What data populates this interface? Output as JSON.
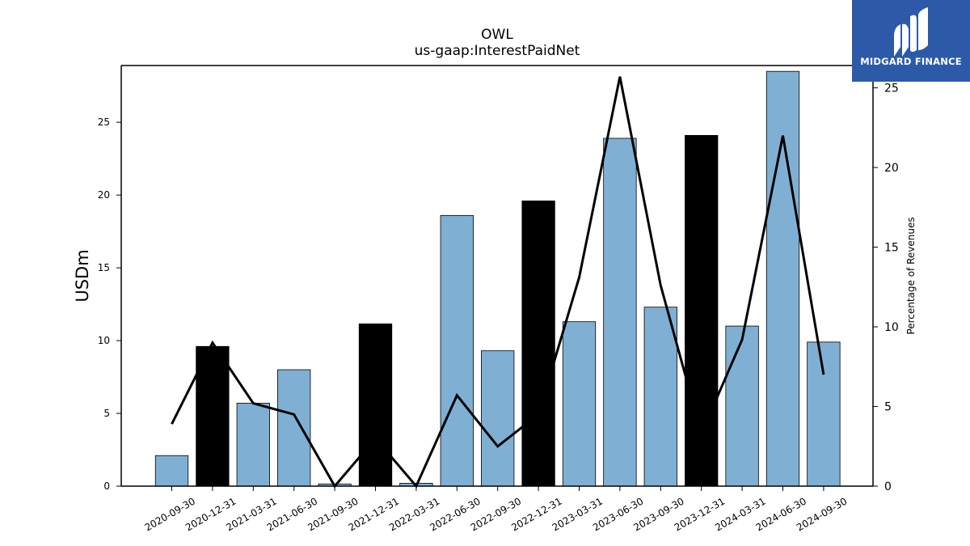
{
  "chart_data": {
    "type": "bar",
    "title": "OWL",
    "subtitle": "us-gaap:InterestPaidNet",
    "ylabel": "USDm",
    "y2label": "Percentage of Revenues",
    "categories": [
      "2020-09-30",
      "2020-12-31",
      "2021-03-31",
      "2021-06-30",
      "2021-09-30",
      "2021-12-31",
      "2022-03-31",
      "2022-06-30",
      "2022-09-30",
      "2022-12-31",
      "2023-03-31",
      "2023-06-30",
      "2023-09-30",
      "2023-12-31",
      "2024-03-31",
      "2024-06-30",
      "2024-09-30"
    ],
    "series": [
      {
        "values": [
          2.1,
          9.6,
          5.7,
          8.0,
          0.15,
          11.15,
          0.2,
          18.6,
          9.3,
          19.6,
          11.3,
          23.9,
          12.3,
          24.1,
          11.0,
          28.5,
          9.9
        ],
        "bar_colors": [
          "#7fb0d4",
          "#000000",
          "#7fb0d4",
          "#7fb0d4",
          "#7fb0d4",
          "#000000",
          "#7fb0d4",
          "#7fb0d4",
          "#7fb0d4",
          "#000000",
          "#7fb0d4",
          "#7fb0d4",
          "#7fb0d4",
          "#000000",
          "#7fb0d4",
          "#7fb0d4",
          "#7fb0d4"
        ]
      },
      {
        "type": "line",
        "axis": "right",
        "color": "#000000",
        "values": [
          3.9,
          9.0,
          5.2,
          4.5,
          0.0,
          3.0,
          0.0,
          5.7,
          2.5,
          4.5,
          13.1,
          25.7,
          12.6,
          3.3,
          9.2,
          22.0,
          7.0
        ]
      }
    ],
    "ylim": [
      0,
      28.9
    ],
    "y2lim": [
      0,
      26.4
    ],
    "yticks": [
      0,
      5,
      10,
      15,
      20,
      25
    ],
    "y2ticks": [
      0,
      5,
      10,
      15,
      20,
      25
    ],
    "grid": false,
    "legend": "none"
  },
  "logo": {
    "text": "MIDGARD FINANCE",
    "bg": "#2d5aa8",
    "fg": "#ffffff"
  }
}
